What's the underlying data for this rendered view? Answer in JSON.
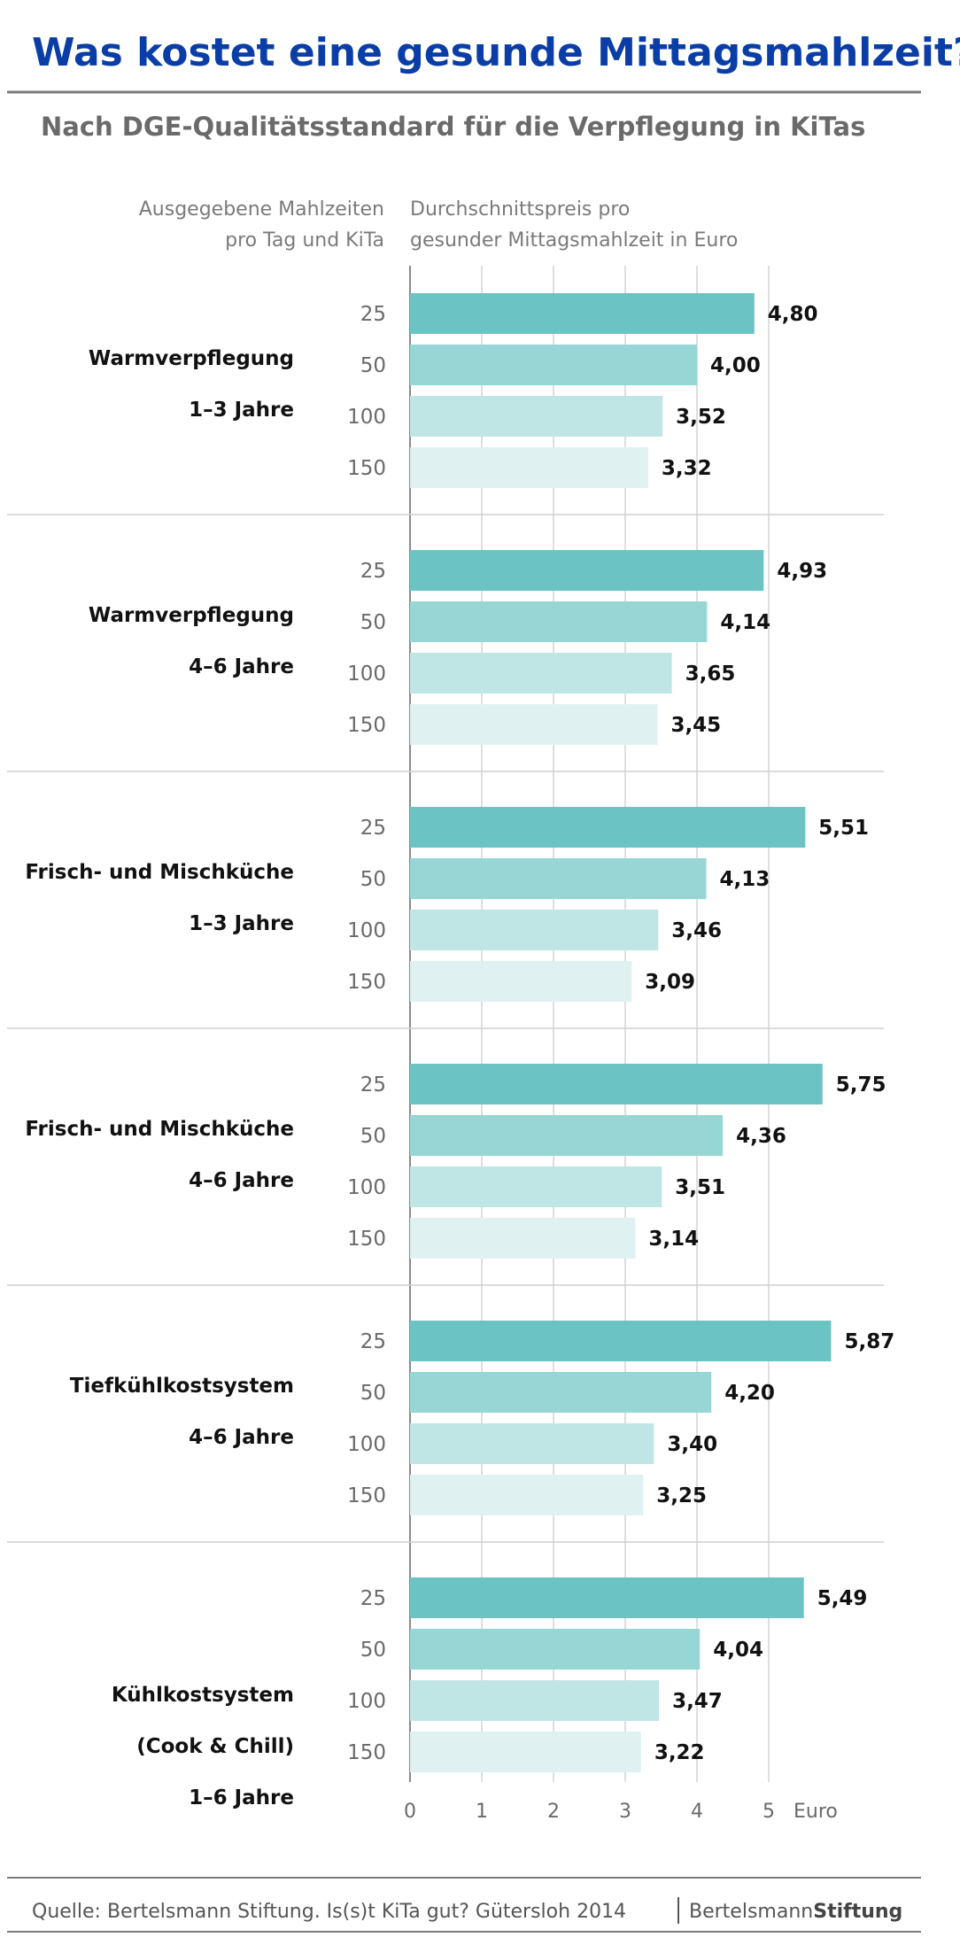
{
  "title": "Was kostet eine gesunde Mittagsmahlzeit?",
  "subtitle": "Nach DGE-Qualitätsstandard für die Verpflegung in KiTas",
  "left_header": [
    "Ausgegebene Mahlzeiten",
    "pro  Tag und KiTa"
  ],
  "right_header": [
    "Durchschnittspreis pro",
    "gesunder Mittagsmahlzeit in Euro"
  ],
  "source": "Quelle: Bertelsmann Stiftung. Is(s)t KiTa gut? Gütersloh 2014",
  "brand": {
    "light": "Bertelsmann",
    "bold": "Stiftung"
  },
  "colors": {
    "title": "#0a3ea6",
    "bar_25": "#6cc3c3",
    "bar_50": "#96d6d4",
    "bar_100": "#bfe6e4",
    "bar_150": "#dff1f1",
    "grid": "#d4d4d4",
    "rule": "#7a7a7a"
  },
  "chart_data": {
    "type": "bar",
    "orientation": "horizontal",
    "xlim": [
      0,
      6
    ],
    "x_ticks": [
      "0",
      "1",
      "2",
      "3",
      "4",
      "5"
    ],
    "x_unit": "Euro",
    "categories": [
      "25",
      "50",
      "100",
      "150"
    ],
    "groups": [
      {
        "label": [
          "Warmverpflegung",
          "1–3 Jahre"
        ],
        "values": [
          4.8,
          4.0,
          3.52,
          3.32
        ],
        "labels": [
          "4,80",
          "4,00",
          "3,52",
          "3,32"
        ]
      },
      {
        "label": [
          "Warmverpflegung",
          "4–6 Jahre"
        ],
        "values": [
          4.93,
          4.14,
          3.65,
          3.45
        ],
        "labels": [
          "4,93",
          "4,14",
          "3,65",
          "3,45"
        ]
      },
      {
        "label": [
          "Frisch- und Mischküche",
          "1–3 Jahre"
        ],
        "values": [
          5.51,
          4.13,
          3.46,
          3.09
        ],
        "labels": [
          "5,51",
          "4,13",
          "3,46",
          "3,09"
        ]
      },
      {
        "label": [
          "Frisch- und Mischküche",
          "4–6 Jahre"
        ],
        "values": [
          5.75,
          4.36,
          3.51,
          3.14
        ],
        "labels": [
          "5,75",
          "4,36",
          "3,51",
          "3,14"
        ]
      },
      {
        "label": [
          "Tiefkühlkostsystem",
          "4–6 Jahre"
        ],
        "values": [
          5.87,
          4.2,
          3.4,
          3.25
        ],
        "labels": [
          "5,87",
          "4,20",
          "3,40",
          "3,25"
        ]
      },
      {
        "label": [
          "Kühlkostsystem",
          "(Cook & Chill)",
          "1–6 Jahre"
        ],
        "values": [
          5.49,
          4.04,
          3.47,
          3.22
        ],
        "labels": [
          "5,49",
          "4,04",
          "3,47",
          "3,22"
        ]
      }
    ]
  }
}
